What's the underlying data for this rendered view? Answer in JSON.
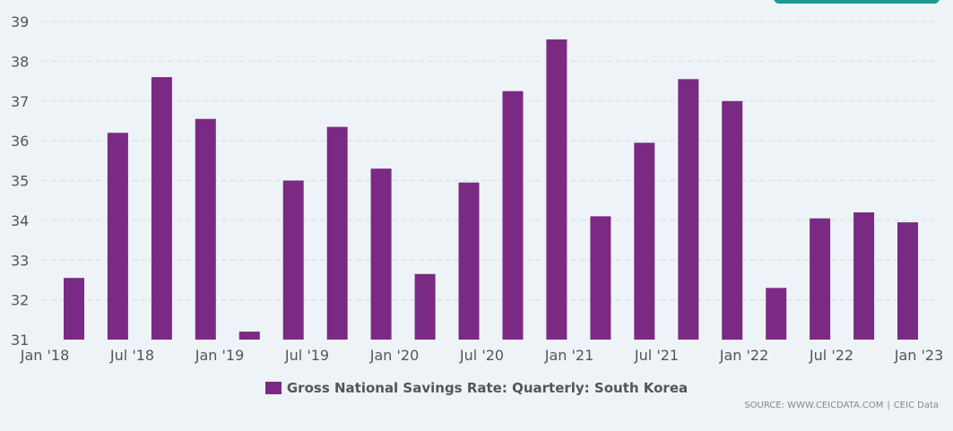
{
  "colors": {
    "bar": "#7b2a83",
    "grid": "#d8dde2",
    "accent_button": "#1a9a8e"
  },
  "chart_data": {
    "type": "bar",
    "x_tick_labels": [
      "Jan '18",
      "Jul '18",
      "Jan '19",
      "Jul '19",
      "Jan '20",
      "Jul '20",
      "Jan '21",
      "Jul '21",
      "Jan '22",
      "Jul '22",
      "Jan '23"
    ],
    "y_ticks": [
      31,
      32,
      33,
      34,
      35,
      36,
      37,
      38,
      39
    ],
    "ylim": [
      31,
      39
    ],
    "grid": true,
    "legend_position": "bottom-center",
    "series": [
      {
        "name": "Gross National Savings Rate: Quarterly: South Korea",
        "categories": [
          "Mar 2018",
          "Jun 2018",
          "Sep 2018",
          "Dec 2018",
          "Mar 2019",
          "Jun 2019",
          "Sep 2019",
          "Dec 2019",
          "Mar 2020",
          "Jun 2020",
          "Sep 2020",
          "Dec 2020",
          "Mar 2021",
          "Jun 2021",
          "Sep 2021",
          "Dec 2021",
          "Mar 2022",
          "Jun 2022",
          "Sep 2022",
          "Dec 2022"
        ],
        "values": [
          32.55,
          36.2,
          37.6,
          36.55,
          31.2,
          35.0,
          36.35,
          35.3,
          32.65,
          34.95,
          37.25,
          38.55,
          34.1,
          35.95,
          37.55,
          37.0,
          32.3,
          34.05,
          34.2,
          33.95
        ]
      }
    ]
  },
  "legend": {
    "label": "Gross National Savings Rate: Quarterly: South Korea"
  },
  "source": {
    "text": "SOURCE: WWW.CEICDATA.COM",
    "separator": "|",
    "brand": "CEIC Data"
  }
}
